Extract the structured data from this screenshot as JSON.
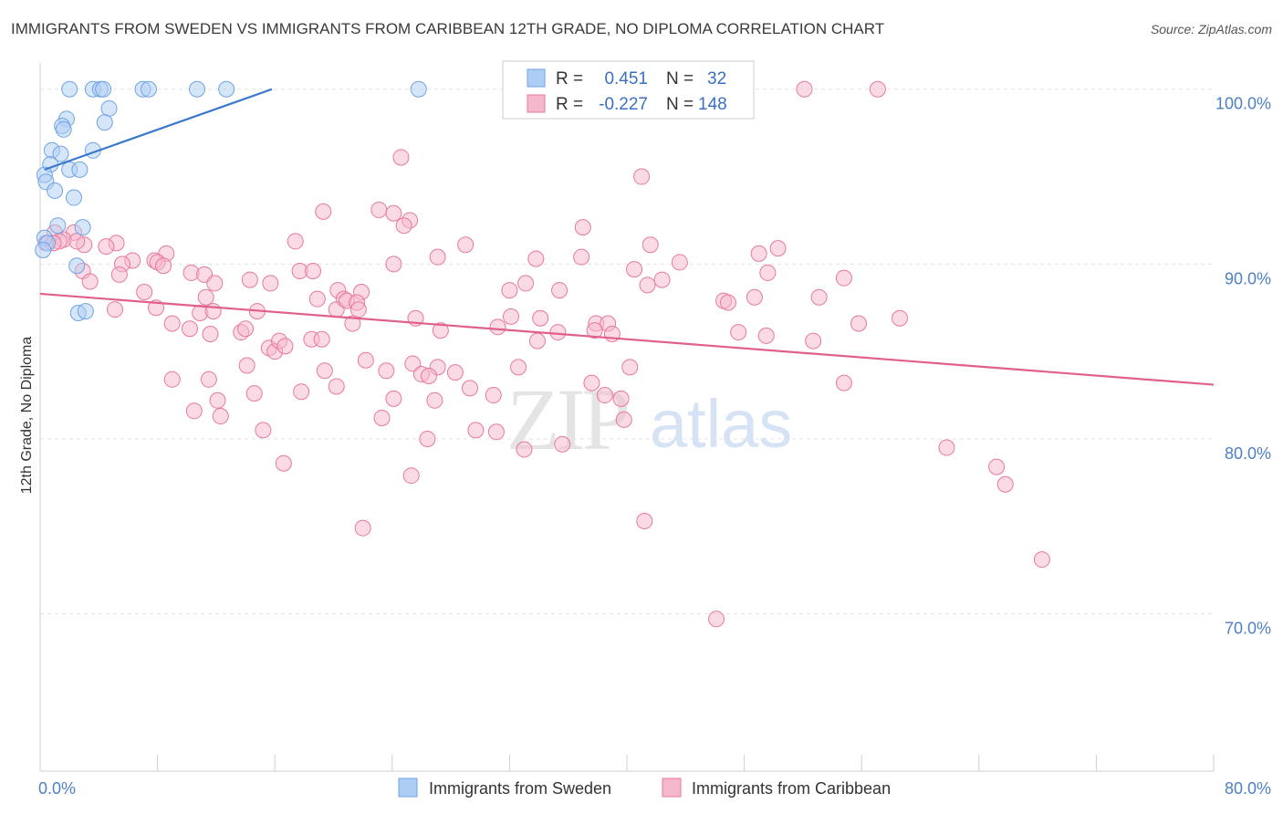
{
  "title": "IMMIGRANTS FROM SWEDEN VS IMMIGRANTS FROM CARIBBEAN 12TH GRADE, NO DIPLOMA CORRELATION CHART",
  "source": "Source: ZipAtlas.com",
  "watermark": {
    "zip": "ZIP",
    "atlas": "atlas"
  },
  "chart_data": {
    "type": "scatter",
    "xlabel": "",
    "ylabel": "12th Grade, No Diploma",
    "xlim": [
      0,
      80
    ],
    "ylim": [
      61,
      101.5
    ],
    "x_tick_labels": [
      {
        "value": 0,
        "label": "0.0%"
      },
      {
        "value": 80,
        "label": "80.0%"
      }
    ],
    "y_tick_labels": [
      {
        "value": 100,
        "label": "100.0%"
      },
      {
        "value": 90,
        "label": "90.0%"
      },
      {
        "value": 80,
        "label": "80.0%"
      },
      {
        "value": 70,
        "label": "70.0%"
      }
    ],
    "grid": true,
    "legend_position": "top-center",
    "series": [
      {
        "name": "Immigrants from Sweden",
        "color": "#6fa3e6",
        "fill": "#aecdf4",
        "stats": {
          "r_label": "R =",
          "r": "0.451",
          "n_label": "N =",
          "n": "32"
        },
        "trend": {
          "x": [
            0.3,
            15.8
          ],
          "y": [
            95.4,
            100.0
          ]
        },
        "points": [
          [
            2,
            100
          ],
          [
            3.6,
            100
          ],
          [
            4.1,
            100
          ],
          [
            4.3,
            100
          ],
          [
            7,
            100
          ],
          [
            7.4,
            100
          ],
          [
            10.7,
            100
          ],
          [
            12.7,
            100
          ],
          [
            25.8,
            100
          ],
          [
            4.7,
            98.9
          ],
          [
            1.8,
            98.3
          ],
          [
            4.4,
            98.1
          ],
          [
            1.5,
            97.9
          ],
          [
            1.6,
            97.7
          ],
          [
            0.8,
            96.5
          ],
          [
            1.4,
            96.3
          ],
          [
            3.6,
            96.5
          ],
          [
            0.7,
            95.7
          ],
          [
            2,
            95.4
          ],
          [
            2.7,
            95.4
          ],
          [
            0.3,
            95.1
          ],
          [
            0.4,
            94.7
          ],
          [
            1,
            94.2
          ],
          [
            2.3,
            93.8
          ],
          [
            1.2,
            92.2
          ],
          [
            2.9,
            92.1
          ],
          [
            0.3,
            91.5
          ],
          [
            0.5,
            91.2
          ],
          [
            0.2,
            90.8
          ],
          [
            2.5,
            89.9
          ],
          [
            2.6,
            87.2
          ],
          [
            3.1,
            87.3
          ]
        ]
      },
      {
        "name": "Immigrants from Caribbean",
        "color": "#e8799c",
        "fill": "#f5b7cb",
        "stats": {
          "r_label": "R =",
          "r": "-0.227",
          "n_label": "N =",
          "n": "148"
        },
        "trend": {
          "x": [
            0,
            80
          ],
          "y": [
            88.3,
            83.1
          ]
        },
        "points": [
          [
            52.1,
            100
          ],
          [
            57.1,
            100
          ],
          [
            24.6,
            96.1
          ],
          [
            41,
            95
          ],
          [
            19.3,
            93
          ],
          [
            23.1,
            93.1
          ],
          [
            24.1,
            92.9
          ],
          [
            25.2,
            92.5
          ],
          [
            24.8,
            92.2
          ],
          [
            37,
            92.1
          ],
          [
            1,
            91.8
          ],
          [
            2.3,
            91.8
          ],
          [
            1.6,
            91.4
          ],
          [
            1.3,
            91.3
          ],
          [
            0.4,
            91.2
          ],
          [
            0.9,
            91.2
          ],
          [
            3,
            91.1
          ],
          [
            2.5,
            91.3
          ],
          [
            5.2,
            91.2
          ],
          [
            4.5,
            91
          ],
          [
            17.4,
            91.3
          ],
          [
            29,
            91.1
          ],
          [
            41.6,
            91.1
          ],
          [
            50.3,
            90.9
          ],
          [
            49,
            90.6
          ],
          [
            8.6,
            90.6
          ],
          [
            6.3,
            90.2
          ],
          [
            7.8,
            90.2
          ],
          [
            27.1,
            90.4
          ],
          [
            33.8,
            90.3
          ],
          [
            36.9,
            90.4
          ],
          [
            5.6,
            90
          ],
          [
            8,
            90.1
          ],
          [
            8.4,
            89.9
          ],
          [
            24.1,
            90
          ],
          [
            43.6,
            90.1
          ],
          [
            40.5,
            89.7
          ],
          [
            2.9,
            89.6
          ],
          [
            5.4,
            89.4
          ],
          [
            10.3,
            89.5
          ],
          [
            11.2,
            89.4
          ],
          [
            17.7,
            89.6
          ],
          [
            18.6,
            89.6
          ],
          [
            49.6,
            89.5
          ],
          [
            3.4,
            89
          ],
          [
            14.3,
            89.1
          ],
          [
            15.7,
            88.9
          ],
          [
            33.1,
            88.9
          ],
          [
            41.4,
            88.8
          ],
          [
            42.4,
            89.1
          ],
          [
            54.8,
            89.2
          ],
          [
            11.9,
            88.9
          ],
          [
            7.1,
            88.4
          ],
          [
            11.3,
            88.1
          ],
          [
            18.9,
            88
          ],
          [
            20.3,
            88.5
          ],
          [
            21.9,
            88.4
          ],
          [
            20.7,
            88
          ],
          [
            32,
            88.5
          ],
          [
            35.4,
            88.5
          ],
          [
            46.6,
            87.9
          ],
          [
            46.9,
            87.8
          ],
          [
            48.7,
            88.1
          ],
          [
            53.1,
            88.1
          ],
          [
            5.1,
            87.4
          ],
          [
            7.9,
            87.5
          ],
          [
            10.9,
            87.2
          ],
          [
            11.8,
            87.3
          ],
          [
            14.8,
            87.3
          ],
          [
            20.2,
            87.4
          ],
          [
            20.9,
            87.9
          ],
          [
            21.6,
            87.8
          ],
          [
            21.7,
            87.4
          ],
          [
            25.6,
            86.9
          ],
          [
            32.1,
            87
          ],
          [
            34.1,
            86.9
          ],
          [
            37.9,
            86.6
          ],
          [
            38.7,
            86.6
          ],
          [
            9,
            86.6
          ],
          [
            10.2,
            86.3
          ],
          [
            11.6,
            86
          ],
          [
            13.7,
            86.1
          ],
          [
            14,
            86.3
          ],
          [
            21.3,
            86.6
          ],
          [
            27.3,
            86.2
          ],
          [
            31.2,
            86.4
          ],
          [
            35.3,
            86.1
          ],
          [
            37.8,
            86.2
          ],
          [
            39,
            86
          ],
          [
            47.6,
            86.1
          ],
          [
            49.5,
            85.9
          ],
          [
            52.7,
            85.6
          ],
          [
            55.8,
            86.6
          ],
          [
            58.6,
            86.9
          ],
          [
            15.6,
            85.2
          ],
          [
            16,
            85
          ],
          [
            16.3,
            85.6
          ],
          [
            16.7,
            85.3
          ],
          [
            18.5,
            85.7
          ],
          [
            19.2,
            85.7
          ],
          [
            33.9,
            85.6
          ],
          [
            14.1,
            84.2
          ],
          [
            22.2,
            84.5
          ],
          [
            25.4,
            84.3
          ],
          [
            27.1,
            84.1
          ],
          [
            32.6,
            84.1
          ],
          [
            40.2,
            84.1
          ],
          [
            9,
            83.4
          ],
          [
            11.5,
            83.4
          ],
          [
            19.4,
            83.9
          ],
          [
            23.6,
            83.9
          ],
          [
            26,
            83.7
          ],
          [
            26.5,
            83.6
          ],
          [
            28.3,
            83.8
          ],
          [
            37.6,
            83.2
          ],
          [
            54.8,
            83.2
          ],
          [
            12.1,
            82.2
          ],
          [
            14.6,
            82.6
          ],
          [
            17.8,
            82.7
          ],
          [
            20.2,
            83
          ],
          [
            24.1,
            82.3
          ],
          [
            26.9,
            82.2
          ],
          [
            29.3,
            82.9
          ],
          [
            30.9,
            82.5
          ],
          [
            38.5,
            82.5
          ],
          [
            39.6,
            82.3
          ],
          [
            10.5,
            81.6
          ],
          [
            12.3,
            81.3
          ],
          [
            15.2,
            80.5
          ],
          [
            23.3,
            81.2
          ],
          [
            29.7,
            80.5
          ],
          [
            39.8,
            81.1
          ],
          [
            26.4,
            80
          ],
          [
            31.1,
            80.4
          ],
          [
            33,
            79.4
          ],
          [
            35.6,
            79.7
          ],
          [
            61.8,
            79.5
          ],
          [
            16.6,
            78.6
          ],
          [
            25.3,
            77.9
          ],
          [
            65.2,
            78.4
          ],
          [
            65.8,
            77.4
          ],
          [
            41.2,
            75.3
          ],
          [
            22,
            74.9
          ],
          [
            68.3,
            73.1
          ],
          [
            46.1,
            69.7
          ]
        ]
      }
    ]
  }
}
